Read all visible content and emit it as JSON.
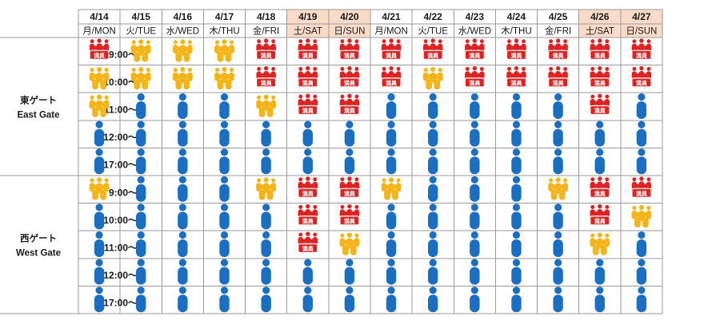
{
  "colors": {
    "empty": "#1a6fc2",
    "busy": "#f4b51a",
    "full": "#e02222",
    "weekend_header": "#fadbc8",
    "grid": "#9a9a9a"
  },
  "legend_levels": {
    "empty": "1 person icon (uncrowded)",
    "busy": "people group icon (crowded)",
    "full": "people group with 満員 tag (full)"
  },
  "full_tag_text": "満員",
  "dates": [
    "4/14",
    "4/15",
    "4/16",
    "4/17",
    "4/18",
    "4/19",
    "4/20",
    "4/21",
    "4/22",
    "4/23",
    "4/24",
    "4/25",
    "4/26",
    "4/27"
  ],
  "days": [
    "月/MON",
    "火/TUE",
    "水/WED",
    "木/THU",
    "金/FRI",
    "土/SAT",
    "日/SUN",
    "月/MON",
    "火/TUE",
    "水/WED",
    "木/THU",
    "金/FRI",
    "土/SAT",
    "日/SUN"
  ],
  "weekend": [
    false,
    false,
    false,
    false,
    false,
    true,
    true,
    false,
    false,
    false,
    false,
    false,
    true,
    true
  ],
  "gates": [
    {
      "name_jp": "東ゲート",
      "name_en": "East Gate",
      "times": [
        "9:00～",
        "10:00～",
        "11:00～",
        "12:00～",
        "17:00～"
      ],
      "status": [
        [
          "full",
          "busy",
          "busy",
          "busy",
          "full",
          "full",
          "full",
          "full",
          "full",
          "full",
          "full",
          "full",
          "full",
          "full"
        ],
        [
          "busy",
          "busy",
          "busy",
          "busy",
          "full",
          "full",
          "full",
          "full",
          "busy",
          "full",
          "full",
          "full",
          "full",
          "full"
        ],
        [
          "busy",
          "empty",
          "empty",
          "empty",
          "busy",
          "full",
          "full",
          "empty",
          "empty",
          "empty",
          "empty",
          "empty",
          "full",
          "empty"
        ],
        [
          "empty",
          "empty",
          "empty",
          "empty",
          "empty",
          "empty",
          "empty",
          "empty",
          "empty",
          "empty",
          "empty",
          "empty",
          "empty",
          "empty"
        ],
        [
          "empty",
          "empty",
          "empty",
          "empty",
          "empty",
          "empty",
          "empty",
          "empty",
          "empty",
          "empty",
          "empty",
          "empty",
          "empty",
          "empty"
        ]
      ]
    },
    {
      "name_jp": "西ゲート",
      "name_en": "West Gate",
      "times": [
        "9:00～",
        "10:00～",
        "11:00～",
        "12:00～",
        "17:00～"
      ],
      "status": [
        [
          "busy",
          "empty",
          "empty",
          "empty",
          "busy",
          "full",
          "full",
          "busy",
          "empty",
          "empty",
          "empty",
          "busy",
          "full",
          "full"
        ],
        [
          "empty",
          "empty",
          "empty",
          "empty",
          "empty",
          "full",
          "full",
          "empty",
          "empty",
          "empty",
          "empty",
          "empty",
          "full",
          "busy"
        ],
        [
          "empty",
          "empty",
          "empty",
          "empty",
          "empty",
          "full",
          "busy",
          "empty",
          "empty",
          "empty",
          "empty",
          "empty",
          "busy",
          "empty"
        ],
        [
          "empty",
          "empty",
          "empty",
          "empty",
          "empty",
          "empty",
          "empty",
          "empty",
          "empty",
          "empty",
          "empty",
          "empty",
          "empty",
          "empty"
        ],
        [
          "empty",
          "empty",
          "empty",
          "empty",
          "empty",
          "empty",
          "empty",
          "empty",
          "empty",
          "empty",
          "empty",
          "empty",
          "empty",
          "empty"
        ]
      ]
    }
  ]
}
